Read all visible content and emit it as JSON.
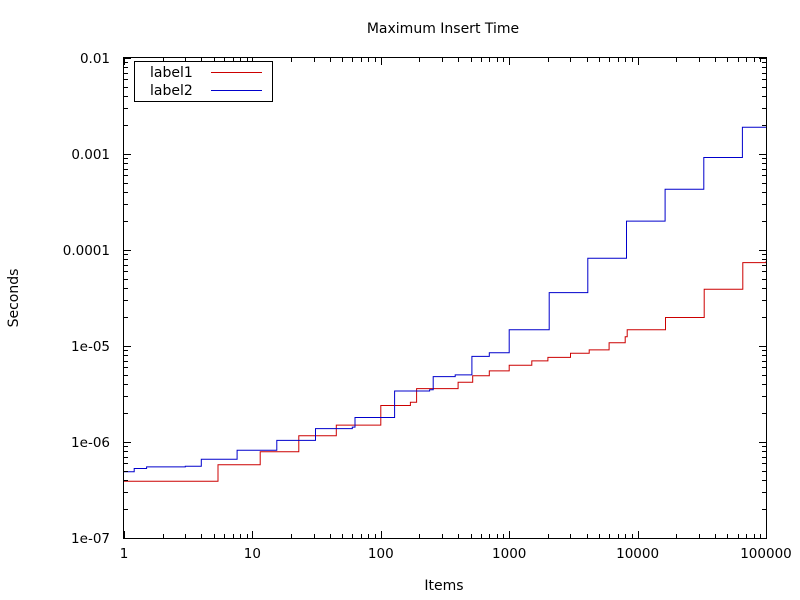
{
  "chart_data": {
    "type": "line",
    "title": "Maximum Insert Time",
    "xlabel": "Items",
    "ylabel": "Seconds",
    "x_scale": "log",
    "y_scale": "log",
    "xlim": [
      1,
      100000
    ],
    "ylim": [
      1e-07,
      0.01
    ],
    "x_ticks": [
      {
        "value": 1,
        "label": "1"
      },
      {
        "value": 10,
        "label": "10"
      },
      {
        "value": 100,
        "label": "100"
      },
      {
        "value": 1000,
        "label": "1000"
      },
      {
        "value": 10000,
        "label": "10000"
      },
      {
        "value": 100000,
        "label": "100000"
      }
    ],
    "y_ticks": [
      {
        "value": 1e-07,
        "label": "1e-07"
      },
      {
        "value": 1e-06,
        "label": "1e-06"
      },
      {
        "value": 1e-05,
        "label": "1e-05"
      },
      {
        "value": 0.0001,
        "label": "0.0001"
      },
      {
        "value": 0.001,
        "label": "0.001"
      },
      {
        "value": 0.01,
        "label": "0.01"
      }
    ],
    "grid": false,
    "legend": "top-left",
    "series": [
      {
        "name": "label1",
        "color": "#cc0000",
        "step": true,
        "points": [
          [
            1,
            3.9e-07
          ],
          [
            5,
            3.9e-07
          ],
          [
            5.4,
            5.8e-07
          ],
          [
            10.5,
            5.8e-07
          ],
          [
            11.5,
            7.9e-07
          ],
          [
            22,
            7.9e-07
          ],
          [
            23,
            1.16e-06
          ],
          [
            42,
            1.16e-06
          ],
          [
            45,
            1.5e-06
          ],
          [
            95,
            1.5e-06
          ],
          [
            100,
            2.4e-06
          ],
          [
            170,
            2.6e-06
          ],
          [
            190,
            3.6e-06
          ],
          [
            400,
            4.2e-06
          ],
          [
            520,
            4.9e-06
          ],
          [
            700,
            5.5e-06
          ],
          [
            1000,
            6.3e-06
          ],
          [
            1500,
            7e-06
          ],
          [
            2000,
            7.6e-06
          ],
          [
            3000,
            8.4e-06
          ],
          [
            4200,
            9.1e-06
          ],
          [
            6000,
            1.08e-05
          ],
          [
            8000,
            1.25e-05
          ],
          [
            8300,
            1.48e-05
          ],
          [
            16000,
            1.48e-05
          ],
          [
            16500,
            1.98e-05
          ],
          [
            32000,
            1.98e-05
          ],
          [
            33000,
            3.9e-05
          ],
          [
            64000,
            3.9e-05
          ],
          [
            66000,
            7.4e-05
          ],
          [
            100000,
            7.6e-05
          ]
        ]
      },
      {
        "name": "label2",
        "color": "#0000cc",
        "step": true,
        "points": [
          [
            1,
            4.9e-07
          ],
          [
            1.2,
            5.3e-07
          ],
          [
            1.5,
            5.5e-07
          ],
          [
            3,
            5.6e-07
          ],
          [
            4,
            6.6e-07
          ],
          [
            7,
            6.6e-07
          ],
          [
            7.6,
            8.2e-07
          ],
          [
            14,
            8.2e-07
          ],
          [
            15.5,
            1.04e-06
          ],
          [
            29,
            1.04e-06
          ],
          [
            31,
            1.38e-06
          ],
          [
            60,
            1.43e-06
          ],
          [
            63,
            1.8e-06
          ],
          [
            120,
            1.8e-06
          ],
          [
            128,
            3.4e-06
          ],
          [
            240,
            3.5e-06
          ],
          [
            256,
            4.8e-06
          ],
          [
            380,
            5e-06
          ],
          [
            512,
            7.8e-06
          ],
          [
            700,
            8.5e-06
          ],
          [
            1000,
            1.48e-05
          ],
          [
            2000,
            1.48e-05
          ],
          [
            2048,
            3.6e-05
          ],
          [
            4000,
            3.6e-05
          ],
          [
            4096,
            8.2e-05
          ],
          [
            8000,
            8.2e-05
          ],
          [
            8192,
            0.0002
          ],
          [
            16000,
            0.0002
          ],
          [
            16384,
            0.00043
          ],
          [
            32000,
            0.00043
          ],
          [
            32768,
            0.00092
          ],
          [
            64000,
            0.00092
          ],
          [
            65536,
            0.0019
          ],
          [
            100000,
            0.0019
          ]
        ]
      }
    ]
  }
}
